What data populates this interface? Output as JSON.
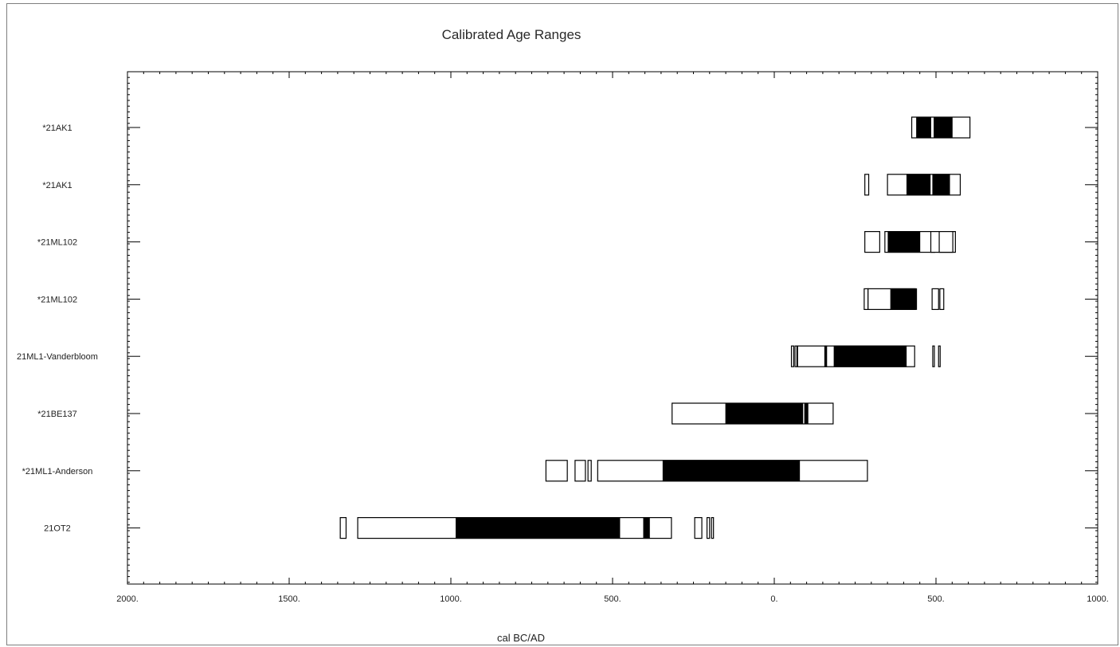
{
  "chart_data": {
    "type": "range",
    "title": "Calibrated Age Ranges",
    "xlabel": "cal  BC/AD",
    "xlim": [
      -2000,
      1000
    ],
    "x_ticks": [
      -2000,
      -1500,
      -1000,
      -500,
      0,
      500,
      1000
    ],
    "x_tick_labels": [
      "2000.",
      "1500.",
      "1000.",
      "500.",
      "0.",
      "500.",
      "1000."
    ],
    "legend": "none",
    "grid": false,
    "series": [
      {
        "label": "*21AK1",
        "outer": [
          [
            425,
            605
          ]
        ],
        "inner": [
          [
            440,
            484
          ],
          [
            494,
            550
          ]
        ]
      },
      {
        "label": "*21AK1",
        "outer": [
          [
            280,
            292
          ],
          [
            350,
            575
          ]
        ],
        "inner": [
          [
            410,
            482
          ],
          [
            490,
            542
          ]
        ]
      },
      {
        "label": "*21ML102",
        "outer": [
          [
            280,
            326
          ],
          [
            342,
            496
          ],
          [
            484,
            560
          ],
          [
            510,
            552
          ]
        ],
        "inner": [
          [
            352,
            450
          ]
        ]
      },
      {
        "label": "*21ML102",
        "outer": [
          [
            278,
            290
          ],
          [
            290,
            436
          ],
          [
            488,
            508
          ],
          [
            512,
            524
          ]
        ],
        "inner": [
          [
            360,
            440
          ]
        ]
      },
      {
        "label": "21ML1-Vanderbloom",
        "outer": [
          [
            53,
            60
          ],
          [
            64,
            70
          ],
          [
            72,
            434
          ],
          [
            490,
            494
          ],
          [
            508,
            512
          ]
        ],
        "inner": [
          [
            156,
            162
          ],
          [
            185,
            408
          ]
        ]
      },
      {
        "label": "*21BE137",
        "outer": [
          [
            -316,
            182
          ]
        ],
        "inner": [
          [
            -150,
            88
          ],
          [
            94,
            104
          ]
        ]
      },
      {
        "label": "*21ML1-Anderson",
        "outer": [
          [
            -706,
            -640
          ],
          [
            -616,
            -584
          ],
          [
            -576,
            -566
          ],
          [
            -546,
            288
          ]
        ],
        "inner": [
          [
            -344,
            78
          ]
        ]
      },
      {
        "label": "21OT2",
        "outer": [
          [
            -1342,
            -1324
          ],
          [
            -1288,
            -318
          ],
          [
            -246,
            -224
          ],
          [
            -208,
            -200
          ],
          [
            -194,
            -188
          ]
        ],
        "inner": [
          [
            -984,
            -478
          ],
          [
            -404,
            -386
          ]
        ]
      }
    ]
  }
}
